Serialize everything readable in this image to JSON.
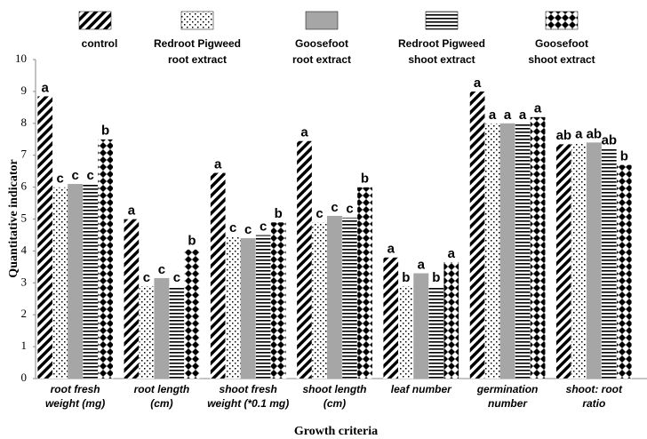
{
  "chart_data": {
    "type": "bar",
    "xlabel": "Growth criteria",
    "ylabel": "Quantitative indicator",
    "categories": [
      "root fresh\nweight (mg)",
      "root length\n(cm)",
      "shoot  fresh\nweight (*0.1 mg)",
      "shoot length\n(cm)",
      "leaf number",
      "germination\nnumber",
      "shoot: root\nratio"
    ],
    "ylim": [
      0,
      10
    ],
    "yticks": [
      0,
      1,
      2,
      3,
      4,
      5,
      6,
      7,
      8,
      9,
      10
    ],
    "grid": false,
    "legend": "top",
    "series": [
      {
        "name": "control",
        "color": "#000000",
        "pattern": "diagonal",
        "values": [
          8.85,
          5.0,
          6.45,
          7.45,
          3.8,
          9.0,
          7.35
        ],
        "letters": [
          "a",
          "a",
          "a",
          "a",
          "a",
          "a",
          "ab"
        ]
      },
      {
        "name": "Redroot Pigweed\nroot extract",
        "color": "#000000",
        "pattern": "dots",
        "values": [
          6.0,
          2.9,
          4.45,
          4.9,
          2.9,
          8.0,
          7.4
        ],
        "letters": [
          "c",
          "c",
          "c",
          "c",
          "b",
          "a",
          "a"
        ]
      },
      {
        "name": "Goosefoot\nroot extract",
        "color": "#a6a6a6",
        "pattern": "solid",
        "values": [
          6.1,
          3.15,
          4.4,
          5.1,
          3.3,
          8.0,
          7.4
        ],
        "letters": [
          "c",
          "c",
          "c",
          "c",
          "a",
          "a",
          "ab"
        ]
      },
      {
        "name": "Redroot Pigweed\nshoot extract",
        "color": "#000000",
        "pattern": "horizontal",
        "values": [
          6.1,
          2.9,
          4.5,
          5.05,
          2.9,
          8.0,
          7.2
        ],
        "letters": [
          "c",
          "c",
          "c",
          "c",
          "b",
          "a",
          "ab"
        ]
      },
      {
        "name": "Goosefoot\nshoot extract",
        "color": "#000000",
        "pattern": "diamonds",
        "values": [
          7.5,
          4.05,
          4.9,
          6.0,
          3.65,
          8.2,
          6.7
        ],
        "letters": [
          "b",
          "b",
          "b",
          "b",
          "a",
          "a",
          "b"
        ]
      }
    ]
  }
}
